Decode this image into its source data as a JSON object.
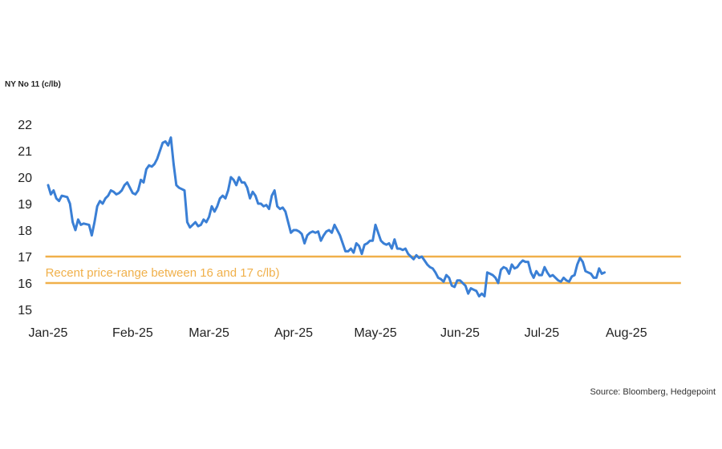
{
  "chart_data": {
    "type": "line",
    "title": "NY No 11 (c/lb)",
    "source": "Source: Bloomberg, Hedgepoint",
    "ylim": [
      15,
      22
    ],
    "yticks": [
      15,
      16,
      17,
      18,
      19,
      20,
      21,
      22
    ],
    "xlim": [
      0,
      232
    ],
    "xticks": [
      {
        "label": "Jan-25",
        "x": 0
      },
      {
        "label": "Feb-25",
        "x": 31
      },
      {
        "label": "Mar-25",
        "x": 59
      },
      {
        "label": "Apr-25",
        "x": 90
      },
      {
        "label": "May-25",
        "x": 120
      },
      {
        "label": "Jun-25",
        "x": 151
      },
      {
        "label": "Jul-25",
        "x": 181
      },
      {
        "label": "Aug-25",
        "x": 212
      }
    ],
    "grid": false,
    "colors": {
      "line": "#3a7fd5",
      "band": "#f0b04a",
      "band_text": "#f0b04a"
    },
    "reference_lines": [
      {
        "value": 17
      },
      {
        "value": 16
      }
    ],
    "annotation": {
      "text": "Recent price-range between 16 and 17 c/lb)",
      "x": -1,
      "y": 16.4
    },
    "series": [
      {
        "points": [
          [
            0,
            19.7
          ],
          [
            1,
            19.35
          ],
          [
            2,
            19.5
          ],
          [
            3,
            19.2
          ],
          [
            4,
            19.1
          ],
          [
            5,
            19.3
          ],
          [
            7,
            19.25
          ],
          [
            8,
            19.0
          ],
          [
            9,
            18.3
          ],
          [
            10,
            18.0
          ],
          [
            11,
            18.4
          ],
          [
            12,
            18.2
          ],
          [
            13,
            18.25
          ],
          [
            15,
            18.2
          ],
          [
            16,
            17.8
          ],
          [
            17,
            18.3
          ],
          [
            18,
            18.9
          ],
          [
            19,
            19.1
          ],
          [
            20,
            19.0
          ],
          [
            21,
            19.2
          ],
          [
            22,
            19.3
          ],
          [
            23,
            19.5
          ],
          [
            24,
            19.45
          ],
          [
            25,
            19.35
          ],
          [
            26,
            19.4
          ],
          [
            27,
            19.5
          ],
          [
            28,
            19.7
          ],
          [
            29,
            19.8
          ],
          [
            30,
            19.6
          ],
          [
            31,
            19.4
          ],
          [
            32,
            19.35
          ],
          [
            33,
            19.5
          ],
          [
            34,
            19.9
          ],
          [
            35,
            19.8
          ],
          [
            36,
            20.3
          ],
          [
            37,
            20.45
          ],
          [
            38,
            20.4
          ],
          [
            39,
            20.5
          ],
          [
            40,
            20.7
          ],
          [
            41,
            21.0
          ],
          [
            42,
            21.3
          ],
          [
            43,
            21.35
          ],
          [
            44,
            21.2
          ],
          [
            45,
            21.5
          ],
          [
            46,
            20.5
          ],
          [
            47,
            19.7
          ],
          [
            48,
            19.6
          ],
          [
            49,
            19.55
          ],
          [
            50,
            19.5
          ],
          [
            51,
            18.3
          ],
          [
            52,
            18.1
          ],
          [
            53,
            18.2
          ],
          [
            54,
            18.3
          ],
          [
            55,
            18.15
          ],
          [
            56,
            18.2
          ],
          [
            57,
            18.4
          ],
          [
            58,
            18.3
          ],
          [
            59,
            18.5
          ],
          [
            60,
            18.9
          ],
          [
            61,
            18.7
          ],
          [
            62,
            18.9
          ],
          [
            63,
            19.2
          ],
          [
            64,
            19.3
          ],
          [
            65,
            19.2
          ],
          [
            66,
            19.5
          ],
          [
            67,
            20.0
          ],
          [
            68,
            19.9
          ],
          [
            69,
            19.7
          ],
          [
            70,
            20.0
          ],
          [
            71,
            19.8
          ],
          [
            72,
            19.8
          ],
          [
            73,
            19.6
          ],
          [
            74,
            19.2
          ],
          [
            75,
            19.45
          ],
          [
            76,
            19.3
          ],
          [
            77,
            19.0
          ],
          [
            78,
            19.0
          ],
          [
            79,
            18.9
          ],
          [
            80,
            18.95
          ],
          [
            81,
            18.8
          ],
          [
            82,
            19.3
          ],
          [
            83,
            19.5
          ],
          [
            84,
            18.9
          ],
          [
            85,
            18.8
          ],
          [
            86,
            18.85
          ],
          [
            87,
            18.7
          ],
          [
            88,
            18.3
          ],
          [
            89,
            17.9
          ],
          [
            90,
            18.0
          ],
          [
            91,
            18.0
          ],
          [
            92,
            17.95
          ],
          [
            93,
            17.85
          ],
          [
            94,
            17.5
          ],
          [
            95,
            17.8
          ],
          [
            96,
            17.9
          ],
          [
            97,
            17.95
          ],
          [
            98,
            17.9
          ],
          [
            99,
            17.95
          ],
          [
            100,
            17.6
          ],
          [
            101,
            17.8
          ],
          [
            102,
            17.95
          ],
          [
            103,
            18.0
          ],
          [
            104,
            17.9
          ],
          [
            105,
            18.2
          ],
          [
            106,
            18.0
          ],
          [
            107,
            17.8
          ],
          [
            108,
            17.5
          ],
          [
            109,
            17.2
          ],
          [
            110,
            17.2
          ],
          [
            111,
            17.3
          ],
          [
            112,
            17.15
          ],
          [
            113,
            17.5
          ],
          [
            114,
            17.4
          ],
          [
            115,
            17.1
          ],
          [
            116,
            17.45
          ],
          [
            117,
            17.5
          ],
          [
            118,
            17.6
          ],
          [
            119,
            17.6
          ],
          [
            120,
            18.2
          ],
          [
            121,
            17.9
          ],
          [
            122,
            17.6
          ],
          [
            123,
            17.5
          ],
          [
            124,
            17.45
          ],
          [
            125,
            17.5
          ],
          [
            126,
            17.3
          ],
          [
            127,
            17.65
          ],
          [
            128,
            17.3
          ],
          [
            129,
            17.3
          ],
          [
            130,
            17.25
          ],
          [
            131,
            17.3
          ],
          [
            132,
            17.1
          ],
          [
            133,
            17.0
          ],
          [
            134,
            16.9
          ],
          [
            135,
            17.05
          ],
          [
            136,
            16.95
          ],
          [
            137,
            17.0
          ],
          [
            138,
            16.85
          ],
          [
            139,
            16.7
          ],
          [
            140,
            16.6
          ],
          [
            141,
            16.55
          ],
          [
            142,
            16.4
          ],
          [
            143,
            16.2
          ],
          [
            144,
            16.15
          ],
          [
            145,
            16.05
          ],
          [
            146,
            16.3
          ],
          [
            147,
            16.2
          ],
          [
            148,
            15.9
          ],
          [
            149,
            15.85
          ],
          [
            150,
            16.1
          ],
          [
            151,
            16.1
          ],
          [
            152,
            16.0
          ],
          [
            153,
            15.9
          ],
          [
            154,
            15.6
          ],
          [
            155,
            15.8
          ],
          [
            156,
            15.75
          ],
          [
            157,
            15.7
          ],
          [
            158,
            15.5
          ],
          [
            159,
            15.6
          ],
          [
            160,
            15.5
          ],
          [
            161,
            16.4
          ],
          [
            162,
            16.35
          ],
          [
            163,
            16.3
          ],
          [
            164,
            16.2
          ],
          [
            165,
            16.0
          ],
          [
            166,
            16.5
          ],
          [
            167,
            16.6
          ],
          [
            168,
            16.55
          ],
          [
            169,
            16.35
          ],
          [
            170,
            16.7
          ],
          [
            171,
            16.55
          ],
          [
            172,
            16.6
          ],
          [
            173,
            16.75
          ],
          [
            174,
            16.85
          ],
          [
            175,
            16.8
          ],
          [
            176,
            16.8
          ],
          [
            177,
            16.4
          ],
          [
            178,
            16.2
          ],
          [
            179,
            16.45
          ],
          [
            180,
            16.3
          ],
          [
            181,
            16.3
          ],
          [
            182,
            16.6
          ],
          [
            183,
            16.4
          ],
          [
            184,
            16.25
          ],
          [
            185,
            16.3
          ],
          [
            186,
            16.2
          ],
          [
            187,
            16.1
          ],
          [
            188,
            16.05
          ],
          [
            189,
            16.2
          ],
          [
            190,
            16.1
          ],
          [
            191,
            16.05
          ],
          [
            192,
            16.25
          ],
          [
            193,
            16.3
          ],
          [
            194,
            16.7
          ],
          [
            195,
            16.95
          ],
          [
            196,
            16.8
          ],
          [
            197,
            16.45
          ],
          [
            198,
            16.4
          ],
          [
            199,
            16.35
          ],
          [
            200,
            16.2
          ],
          [
            201,
            16.2
          ],
          [
            202,
            16.55
          ],
          [
            203,
            16.35
          ],
          [
            204,
            16.4
          ]
        ]
      }
    ]
  }
}
